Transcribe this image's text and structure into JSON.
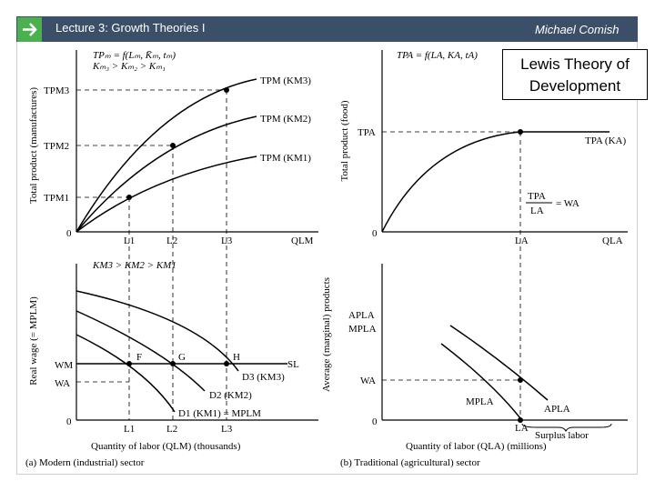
{
  "header": {
    "lecture_title": "Lecture 3:  Growth Theories I",
    "author": "Michael Comish",
    "accent_color": "#4caf50",
    "bar_color": "#3b5068",
    "arrow_icon": "arrow-right-icon"
  },
  "slide_title": {
    "line1": "Lewis Theory of",
    "line2": "Development"
  },
  "figure": {
    "panel_a_top": {
      "ylabel": "Total product (manufactures)",
      "eq1": "TPₘ = f(Lₘ, K̄ₘ, tₘ)",
      "eq2": "Kₘ₃ > Kₘ₂ > Kₘ₁",
      "y_tick1": "TPM1",
      "y_tick2": "TPM2",
      "y_tick3": "TPM3",
      "origin": "0",
      "x_tick1": "L1",
      "x_tick2": "L2",
      "x_tick3": "L3",
      "xlabel": "QLM",
      "curve1": "TPM (KM1)",
      "curve2": "TPM (KM2)",
      "curve3": "TPM (KM3)"
    },
    "panel_a_bottom": {
      "ylabel": "Real wage (= MPLM)",
      "eq": "KM3 > KM2 > KM1",
      "y_wm": "WM",
      "y_wa": "WA",
      "origin": "0",
      "x_tick1": "L1",
      "x_tick2": "L2",
      "x_tick3": "L3",
      "point_f": "F",
      "point_g": "G",
      "point_h": "H",
      "sl": "SL",
      "d3": "D3 (KM3)",
      "d2": "D2 (KM2)",
      "d1": "D1 (KM1) = MPLM",
      "xlabel": "Quantity of labor (QLM) (thousands)",
      "caption": "(a) Modern (industrial) sector"
    },
    "panel_b_top": {
      "ylabel": "Total product (food)",
      "eq": "TPA = f(LA, KA, tA)",
      "y_tick": "TPA",
      "origin": "0",
      "x_tick": "LA",
      "xlabel": "QLA",
      "curve": "TPA (KA)",
      "wage_eq_num": "TPA",
      "wage_eq_den": "LA",
      "wage_eq_rhs": "= WA"
    },
    "panel_b_bottom": {
      "ylabel": "Average (marginal) products",
      "y_ap": "APLA",
      "y_mp": "MPLA",
      "y_wa": "WA",
      "origin": "0",
      "x_tick": "LA",
      "mp_label": "MPLA",
      "ap_label": "APLA",
      "surplus": "Surplus labor",
      "xlabel": "Quantity of labor (QLA) (millions)",
      "caption": "(b) Traditional (agricultural) sector"
    }
  }
}
